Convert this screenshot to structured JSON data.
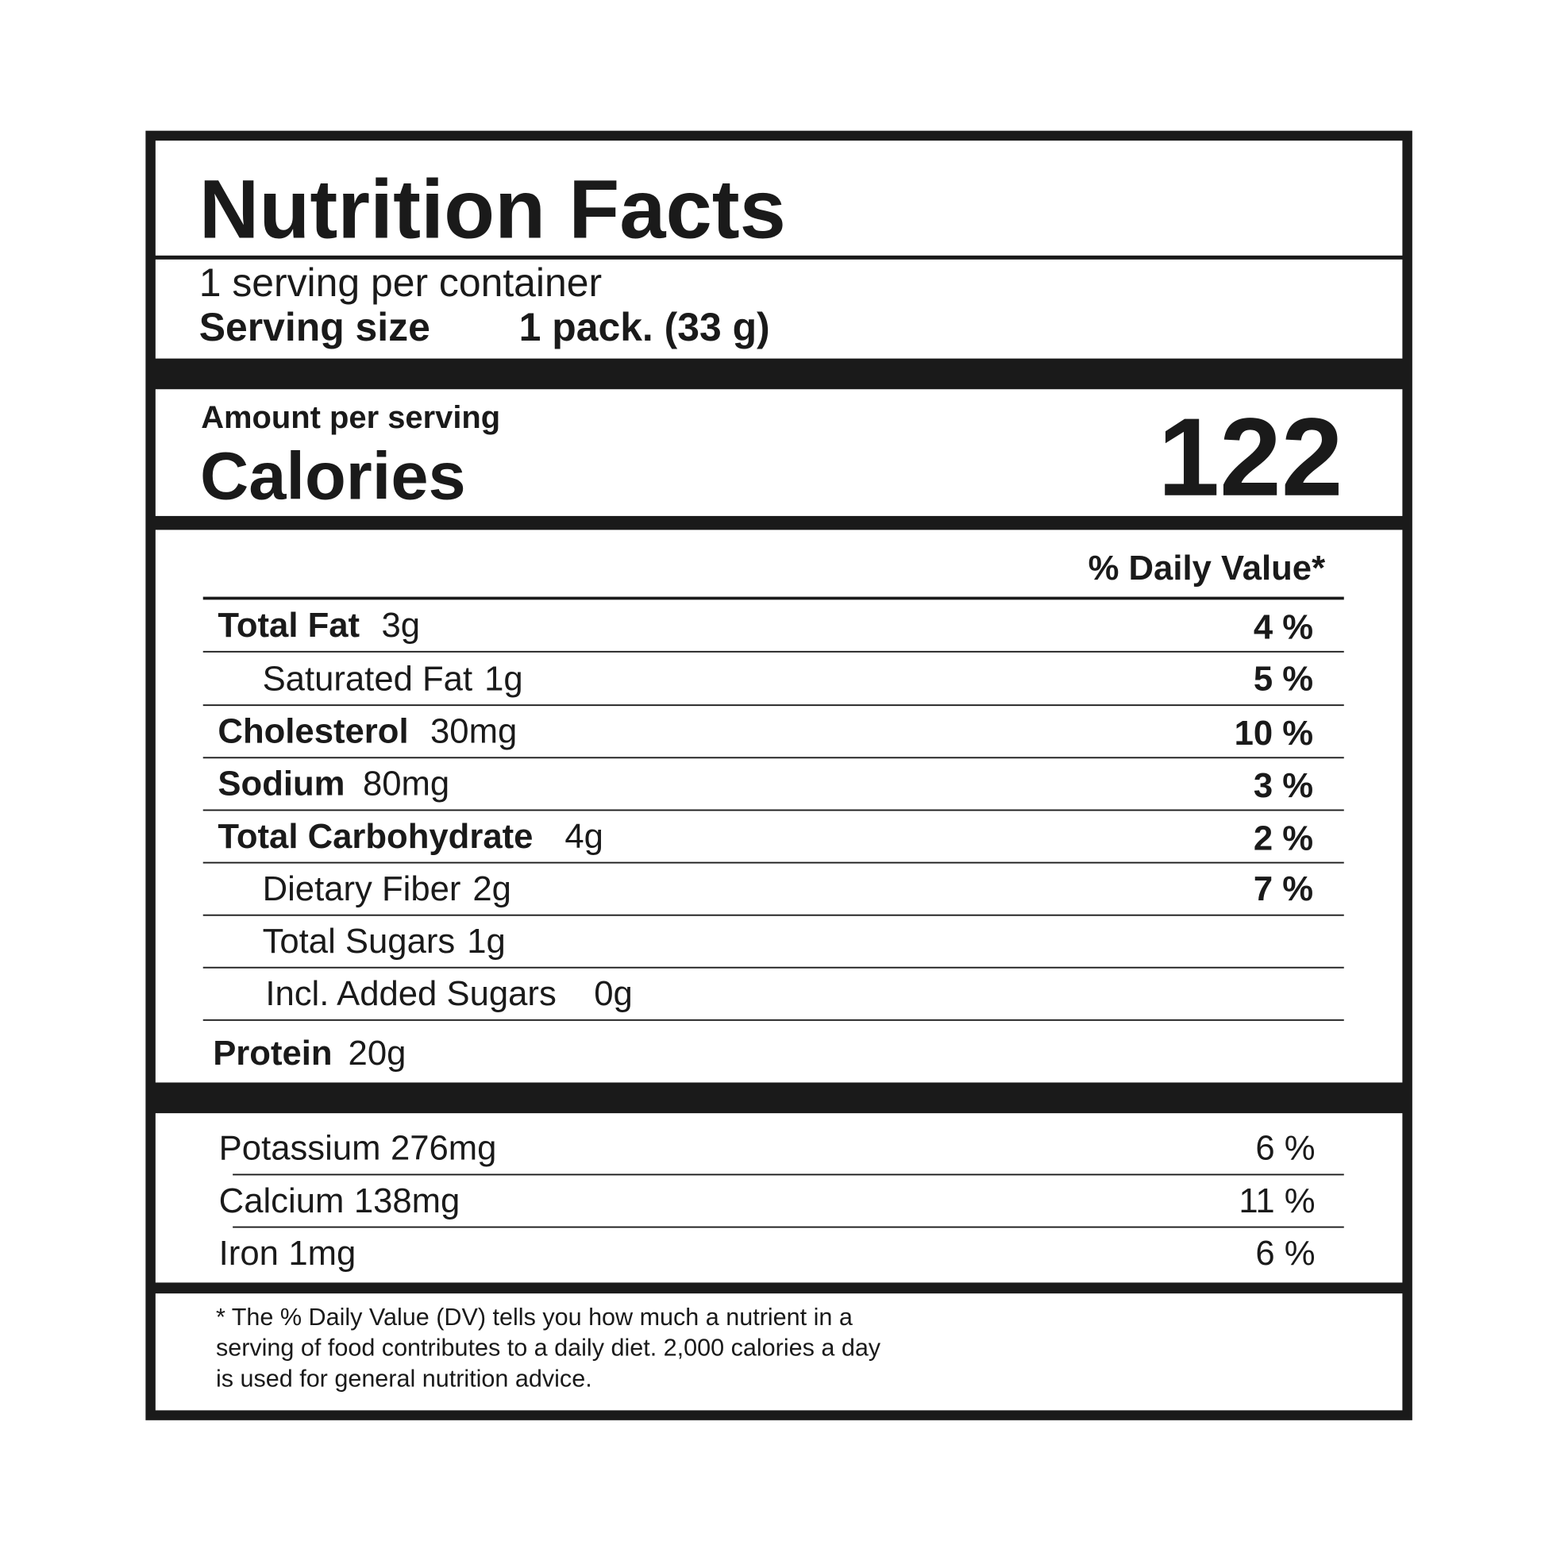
{
  "title": "Nutrition Facts",
  "servings_per_container": "1 serving per container",
  "serving_size": {
    "label": "Serving size",
    "value": "1 pack. (33 g)"
  },
  "amount_per_serving": "Amount per serving",
  "calories": {
    "label": "Calories",
    "value": "122"
  },
  "daily_value_header": "% Daily Value*",
  "nutrients": [
    {
      "name": "Total Fat",
      "amount": "3g",
      "dv": "4 %"
    },
    {
      "name": "Saturated Fat",
      "amount": "1g",
      "dv": "5 %"
    },
    {
      "name": "Cholesterol",
      "amount": "30mg",
      "dv": "10 %"
    },
    {
      "name": "Sodium",
      "amount": "80mg",
      "dv": "3 %"
    },
    {
      "name": "Total Carbohydrate",
      "amount": "4g",
      "dv": "2 %"
    },
    {
      "name": "Dietary Fiber",
      "amount": "2g",
      "dv": "7 %"
    },
    {
      "name": "Total Sugars",
      "amount": "1g"
    },
    {
      "name": "Incl. Added Sugars",
      "amount": "0g"
    },
    {
      "name": "Protein",
      "amount": "20g"
    }
  ],
  "minerals": [
    {
      "name": "Potassium",
      "amount": "276mg",
      "dv": "6 %"
    },
    {
      "name": "Calcium",
      "amount": "138mg",
      "dv": "11 %"
    },
    {
      "name": "Iron",
      "amount": "1mg",
      "dv": "6 %"
    }
  ],
  "footnote": [
    "* The % Daily Value (DV) tells you how much a nutrient in a",
    "serving of food contributes to a daily diet. 2,000 calories a day",
    "is used for general nutrition advice."
  ]
}
